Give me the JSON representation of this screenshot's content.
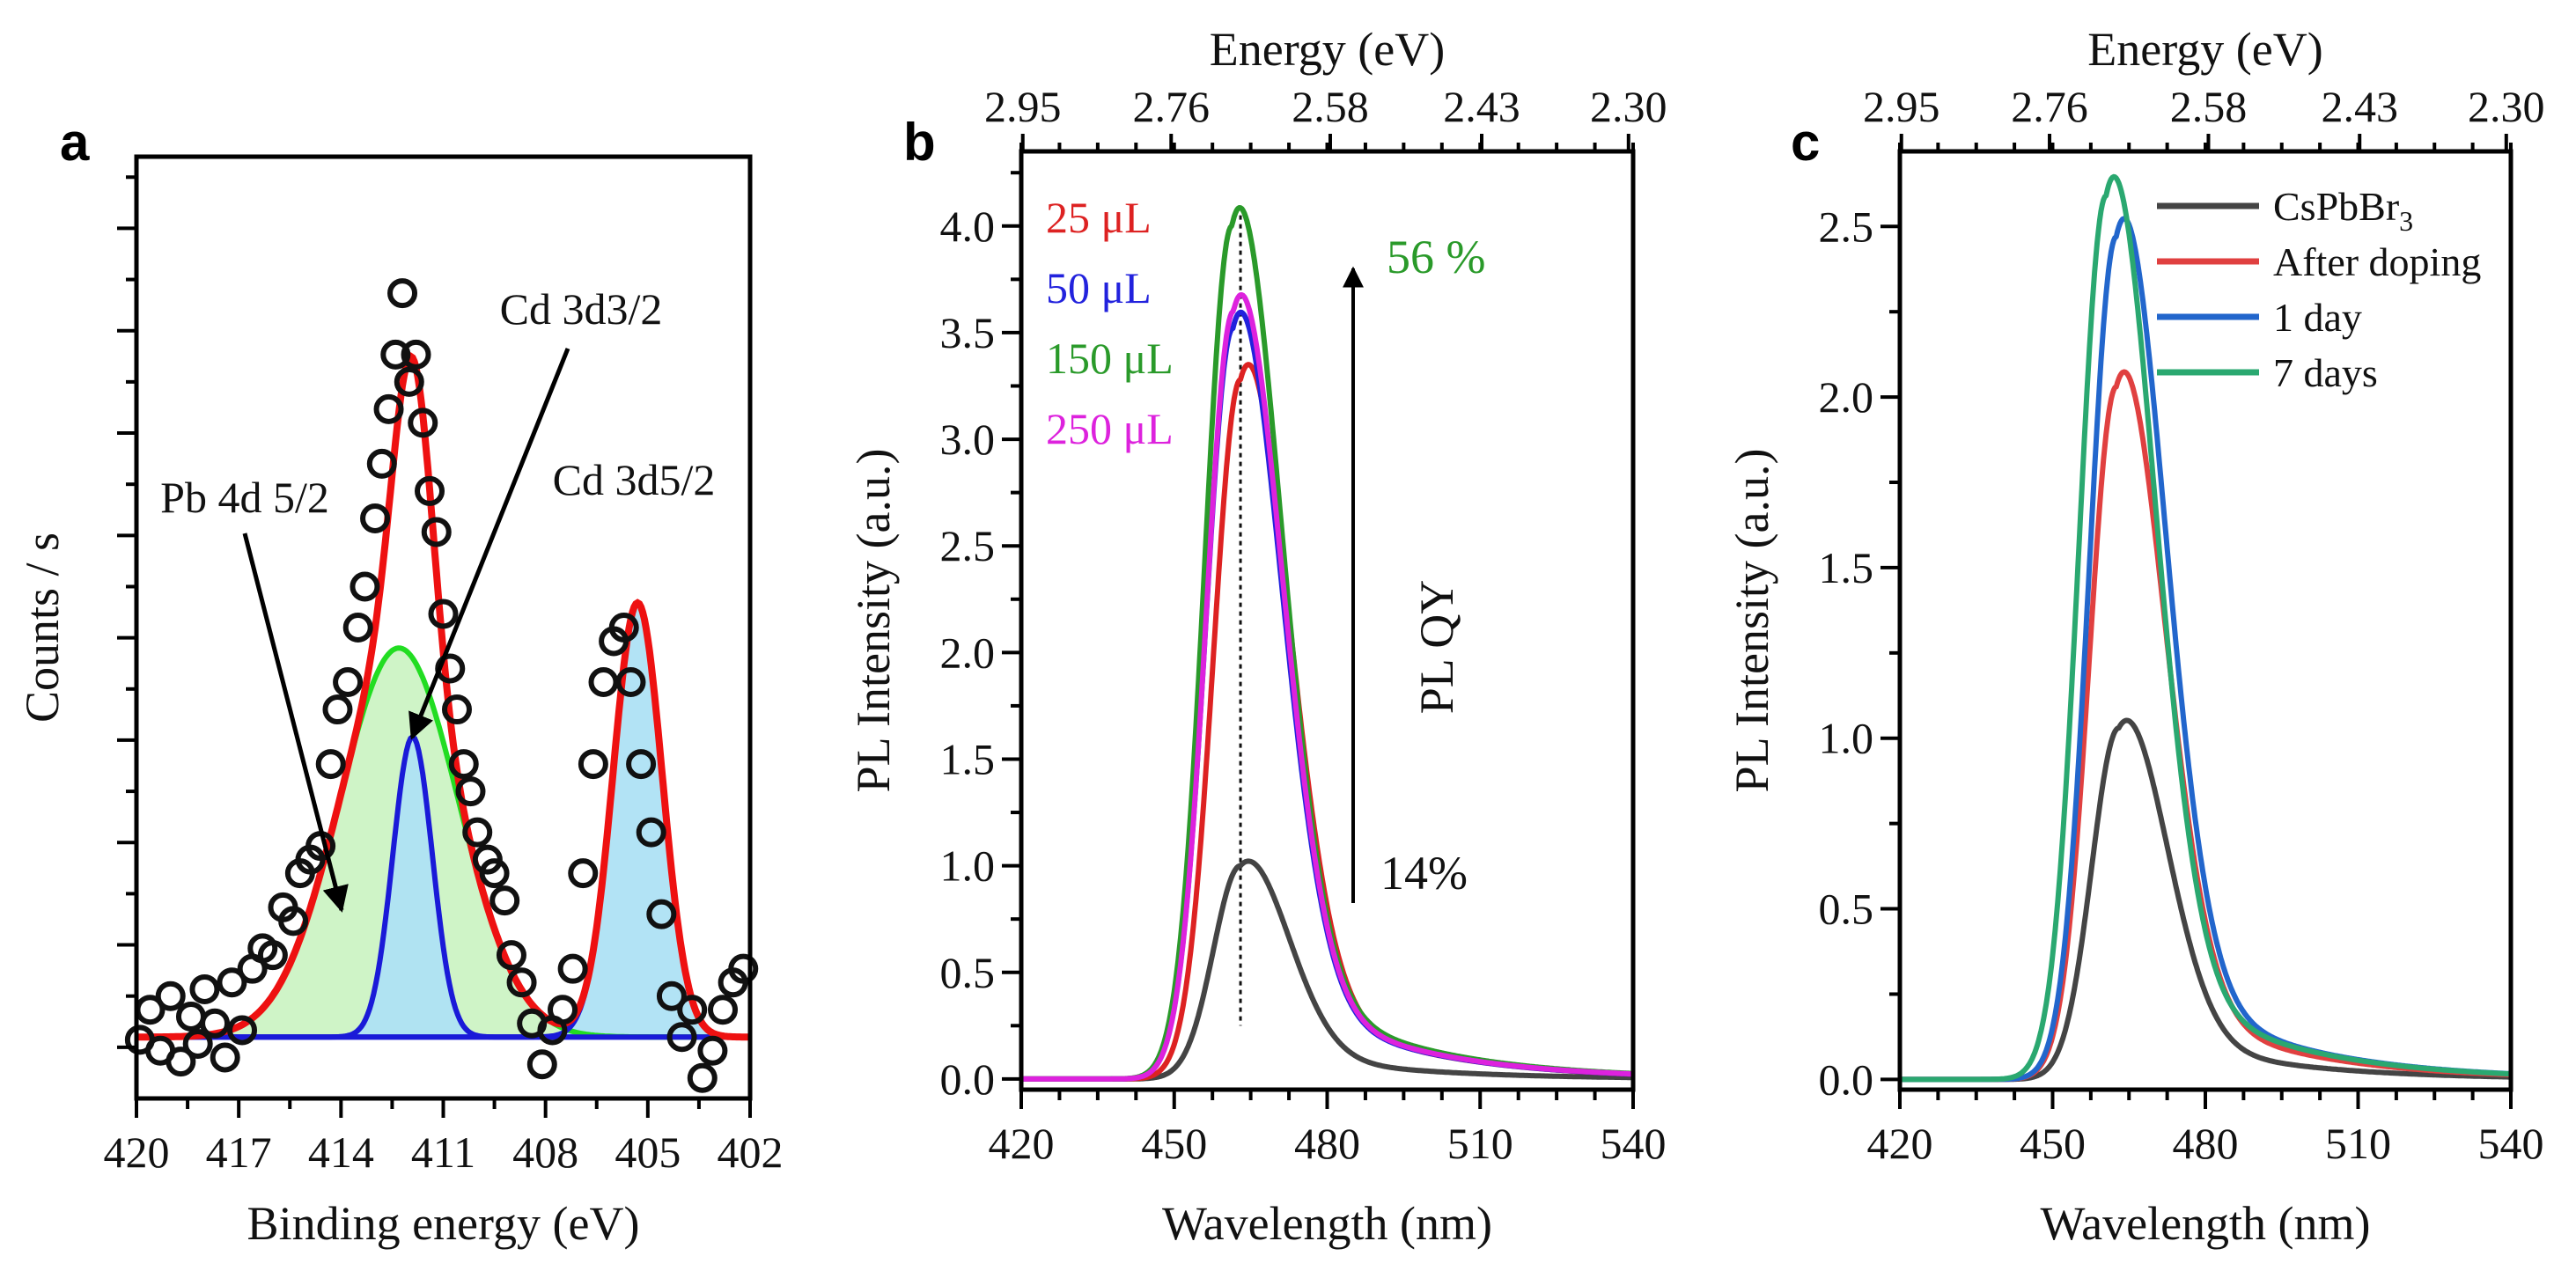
{
  "chart_data": [
    {
      "panel": "a",
      "type": "scatter",
      "xlabel": "Binding energy (eV)",
      "ylabel": "Counts / s",
      "xlim": [
        420,
        402
      ],
      "ylim": [
        -0.045,
        0.645
      ],
      "x_ticks": [
        "420",
        "417",
        "414",
        "411",
        "408",
        "405",
        "402"
      ],
      "y_ticks": [],
      "x_minor_step": 1.5,
      "y_major_step": 0.075,
      "y_minor_step": 0.0375,
      "annotations": [
        "Cd 3d3/2",
        "Pb 4d 5/2",
        "Cd 3d5/2"
      ],
      "components": [
        {
          "name": "Pb 4d 5/2",
          "center": 412.3,
          "amplitude": 0.285,
          "sigma": 1.75,
          "color": "#22dd22",
          "fill": "#ccf3c4"
        },
        {
          "name": "Cd 3d3/2",
          "center": 411.9,
          "amplitude": 0.22,
          "sigma": 0.58,
          "color": "#1a1ad8",
          "fill": "#aee1f4"
        },
        {
          "name": "Cd 3d5/2",
          "center": 405.3,
          "amplitude": 0.318,
          "sigma": 0.72,
          "color": "#1a1ad8",
          "fill": "#aee1f4"
        }
      ],
      "envelope_color": "#ee1111",
      "points_x": [
        419.9,
        419.6,
        419.3,
        419.0,
        418.7,
        418.4,
        418.2,
        418.0,
        417.7,
        417.4,
        417.2,
        416.9,
        416.6,
        416.3,
        416.0,
        415.7,
        415.4,
        415.2,
        414.9,
        414.6,
        414.3,
        414.1,
        413.8,
        413.5,
        413.3,
        413.0,
        412.8,
        412.6,
        412.4,
        412.2,
        412.0,
        411.8,
        411.6,
        411.4,
        411.2,
        411.0,
        410.8,
        410.6,
        410.4,
        410.2,
        410.0,
        409.7,
        409.5,
        409.2,
        409.0,
        408.7,
        408.4,
        408.1,
        407.8,
        407.5,
        407.2,
        406.9,
        406.6,
        406.3,
        406.0,
        405.7,
        405.5,
        405.2,
        404.9,
        404.6,
        404.3,
        404.0,
        403.7,
        403.4,
        403.1,
        402.8,
        402.5,
        402.2
      ],
      "points_y": [
        -0.002,
        0.02,
        -0.01,
        0.03,
        -0.018,
        0.015,
        -0.005,
        0.035,
        0.01,
        -0.015,
        0.04,
        0.005,
        0.05,
        0.065,
        0.06,
        0.095,
        0.085,
        0.12,
        0.13,
        0.14,
        0.2,
        0.24,
        0.26,
        0.3,
        0.33,
        0.38,
        0.42,
        0.46,
        0.5,
        0.545,
        0.48,
        0.5,
        0.45,
        0.4,
        0.37,
        0.31,
        0.27,
        0.24,
        0.2,
        0.18,
        0.15,
        0.13,
        0.12,
        0.1,
        0.06,
        0.04,
        0.01,
        -0.02,
        0.005,
        0.02,
        0.05,
        0.12,
        0.2,
        0.26,
        0.29,
        0.3,
        0.26,
        0.2,
        0.15,
        0.09,
        0.03,
        0.0,
        0.02,
        -0.03,
        -0.01,
        0.02,
        0.04,
        0.05
      ]
    },
    {
      "panel": "b",
      "type": "line",
      "xlabel": "Wavelength (nm)",
      "ylabel": "PL Intensity (a.u.)",
      "x2label": "Energy (eV)",
      "xlim": [
        420,
        540
      ],
      "ylim": [
        -0.05,
        4.35
      ],
      "x_ticks": [
        420,
        450,
        480,
        510,
        540
      ],
      "x_tick_labels": [
        "420",
        "450",
        "480",
        "510",
        "540"
      ],
      "y_ticks": [
        0,
        0.5,
        1,
        1.5,
        2,
        2.5,
        3,
        3.5,
        4
      ],
      "y_tick_labels": [
        "0.0",
        "0.5",
        "1.0",
        "1.5",
        "2.0",
        "2.5",
        "3.0",
        "3.5",
        "4.0"
      ],
      "x_minor_step": 7.5,
      "y_minor_step": 0.25,
      "x2_ticks": [
        420.3,
        449.4,
        480.6,
        510.3,
        539.1
      ],
      "x2_tick_labels": [
        "2.95",
        "2.76",
        "2.58",
        "2.43",
        "2.30"
      ],
      "reference_line_x": 463,
      "series": [
        {
          "name": "CsPbBr3",
          "color": "#444444",
          "peak": 1.0,
          "center": 463
        },
        {
          "name": "25 μL",
          "color": "#dd2222",
          "peak": 3.28,
          "center": 463
        },
        {
          "name": "50 μL",
          "color": "#2222dd",
          "peak": 3.52,
          "center": 461.5
        },
        {
          "name": "150 μL",
          "color": "#2a9a2a",
          "peak": 4.0,
          "center": 461.3
        },
        {
          "name": "250 μL",
          "color": "#dd22dd",
          "peak": 3.6,
          "center": 461.6
        }
      ],
      "legend": [
        {
          "label": "25 μL",
          "color": "#dd2222"
        },
        {
          "label": "50 μL",
          "color": "#2222dd"
        },
        {
          "label": "150 μL",
          "color": "#2a9a2a"
        },
        {
          "label": "250 μL",
          "color": "#dd22dd"
        }
      ],
      "annotations": {
        "top": "56 %",
        "top_color": "#2a9a2a",
        "bottom": "14%",
        "arrow_label": "PL QY"
      }
    },
    {
      "panel": "c",
      "type": "line",
      "xlabel": "Wavelength (nm)",
      "ylabel": "PL Intensity (a.u.)",
      "x2label": "Energy (eV)",
      "xlim": [
        420,
        540
      ],
      "ylim": [
        -0.03,
        2.72
      ],
      "x_ticks": [
        420,
        450,
        480,
        510,
        540
      ],
      "x_tick_labels": [
        "420",
        "450",
        "480",
        "510",
        "540"
      ],
      "y_ticks": [
        0,
        0.5,
        1,
        1.5,
        2,
        2.5
      ],
      "y_tick_labels": [
        "0.0",
        "0.5",
        "1.0",
        "1.5",
        "2.0",
        "2.5"
      ],
      "x_minor_step": 7.5,
      "y_minor_step": 0.25,
      "x2_ticks": [
        420.3,
        449.4,
        480.6,
        510.3,
        539.1
      ],
      "x2_tick_labels": [
        "2.95",
        "2.76",
        "2.58",
        "2.43",
        "2.30"
      ],
      "series": [
        {
          "name": "CsPbBr3",
          "color": "#444444",
          "peak": 1.03,
          "center": 463
        },
        {
          "name": "After doping",
          "color": "#e04040",
          "peak": 2.03,
          "center": 462.5
        },
        {
          "name": "1 day",
          "color": "#2266cc",
          "peak": 2.47,
          "center": 462.5
        },
        {
          "name": "7 days",
          "color": "#2aa870",
          "peak": 2.59,
          "center": 460.5
        }
      ],
      "legend": [
        {
          "label": "CsPbBr",
          "sub": "3",
          "color": "#444444"
        },
        {
          "label": "After doping",
          "color": "#e04040"
        },
        {
          "label": "1 day",
          "color": "#2266cc"
        },
        {
          "label": "7 days",
          "color": "#2aa870"
        }
      ]
    }
  ],
  "panel_labels": {
    "a": "a",
    "b": "b",
    "c": "c"
  }
}
